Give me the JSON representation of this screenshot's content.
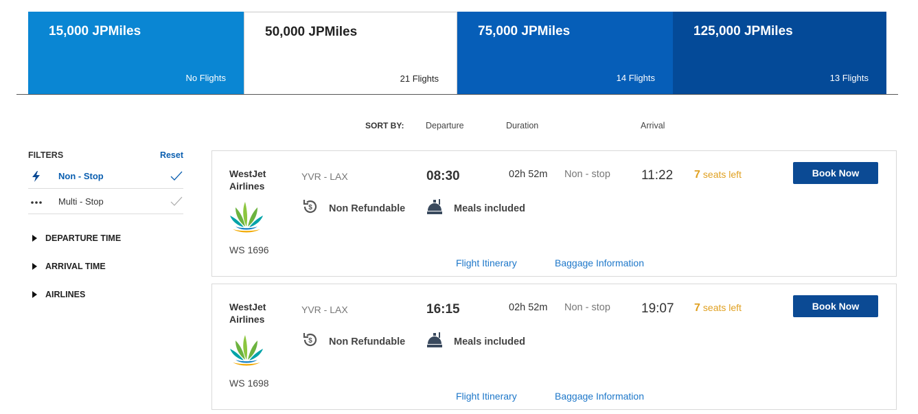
{
  "tabs": [
    {
      "title": "15,000 JPMiles",
      "sub": "No Flights"
    },
    {
      "title": "50,000 JPMiles",
      "sub": "21 Flights"
    },
    {
      "title": "75,000 JPMiles",
      "sub": "14 Flights"
    },
    {
      "title": "125,000 JPMiles",
      "sub": "13 Flights"
    }
  ],
  "sort": {
    "label": "SORT BY:",
    "departure": "Departure",
    "duration": "Duration",
    "arrival": "Arrival"
  },
  "filters": {
    "title": "FILTERS",
    "reset": "Reset",
    "options": [
      {
        "label": "Non - Stop",
        "icon": "lightning-icon"
      },
      {
        "label": "Multi - Stop",
        "icon": "dots-icon"
      }
    ],
    "sections": [
      "DEPARTURE TIME",
      "ARRIVAL TIME",
      "AIRLINES"
    ]
  },
  "flights": [
    {
      "airline": "WestJet Airlines",
      "flight_no": "WS 1696",
      "route": "YVR - LAX",
      "departure": "08:30",
      "duration": "02h 52m",
      "stops": "Non - stop",
      "arrival": "11:22",
      "seats_num": "7",
      "seats_text": "seats left",
      "book": "Book Now",
      "refund": "Non Refundable",
      "meal": "Meals included",
      "link_itinerary": "Flight Itinerary",
      "link_baggage": "Baggage Information"
    },
    {
      "airline": "WestJet Airlines",
      "flight_no": "WS 1698",
      "route": "YVR - LAX",
      "departure": "16:15",
      "duration": "02h 52m",
      "stops": "Non - stop",
      "arrival": "19:07",
      "seats_num": "7",
      "seats_text": "seats left",
      "book": "Book Now",
      "refund": "Non Refundable",
      "meal": "Meals included",
      "link_itinerary": "Flight Itinerary",
      "link_baggage": "Baggage Information"
    }
  ],
  "colors": {
    "accent": "#0b4a94",
    "link": "#1d77c9",
    "seats": "#e0a020"
  }
}
